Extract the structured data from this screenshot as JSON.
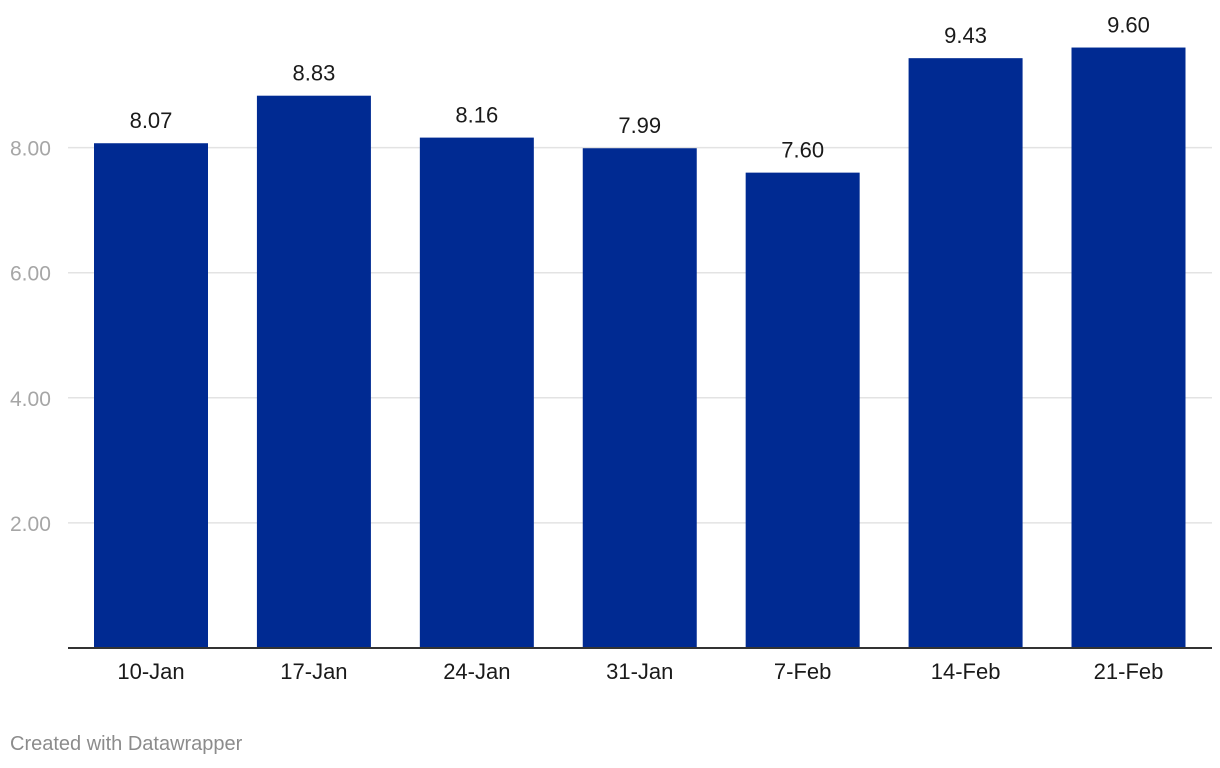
{
  "chart_data": {
    "type": "bar",
    "categories": [
      "10-Jan",
      "17-Jan",
      "24-Jan",
      "31-Jan",
      "7-Feb",
      "14-Feb",
      "21-Feb"
    ],
    "values": [
      8.07,
      8.83,
      8.16,
      7.99,
      7.6,
      9.43,
      9.6
    ],
    "value_labels": [
      "8.07",
      "8.83",
      "8.16",
      "7.99",
      "7.60",
      "9.43",
      "9.60"
    ],
    "title": "",
    "xlabel": "",
    "ylabel": "",
    "ylim": [
      0,
      10.36
    ],
    "yticks": [
      2,
      4,
      6,
      8
    ],
    "ytick_labels": [
      "2.00",
      "4.00",
      "6.00",
      "8.00"
    ],
    "grid": true,
    "bar_color": "#002a92"
  },
  "footer": {
    "credit": "Created with Datawrapper"
  }
}
